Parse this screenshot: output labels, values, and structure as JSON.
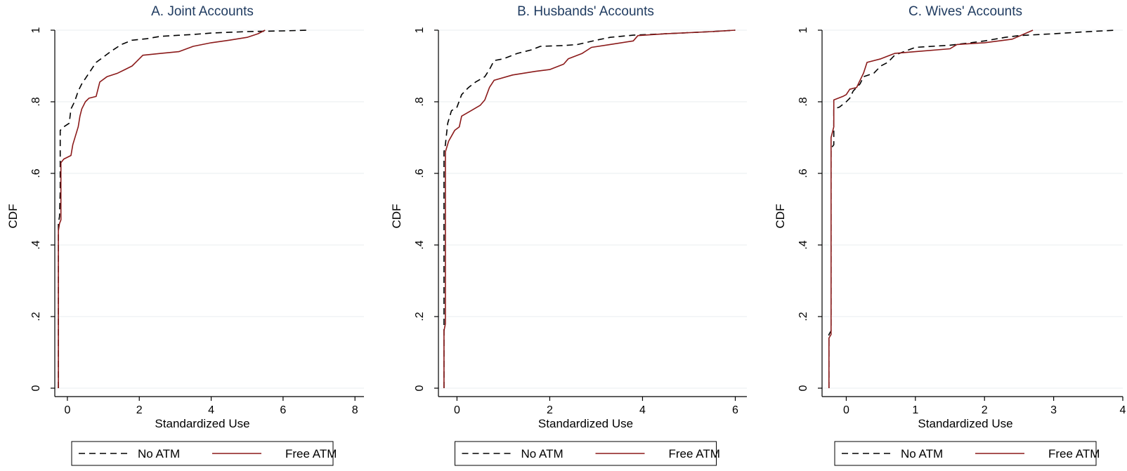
{
  "chart_data": [
    {
      "type": "line",
      "title": "A. Joint Accounts",
      "xlabel": "Standardized Use",
      "ylabel": "CDF",
      "xlim": [
        -0.35,
        8.25
      ],
      "ylim": [
        0,
        1
      ],
      "x_ticks": [
        0,
        2,
        4,
        6,
        8
      ],
      "y_ticks": [
        0,
        0.2,
        0.4,
        0.6,
        0.8,
        1
      ],
      "y_tick_labels": [
        "0",
        ".2",
        ".4",
        ".6",
        ".8",
        "1"
      ],
      "grid": true,
      "legend": "bottom",
      "series": [
        {
          "name": "No ATM",
          "color": "#000000",
          "style": "dashed",
          "points": [
            [
              -0.25,
              0
            ],
            [
              -0.25,
              0.46
            ],
            [
              -0.22,
              0.48
            ],
            [
              -0.2,
              0.55
            ],
            [
              -0.2,
              0.72
            ],
            [
              -0.1,
              0.73
            ],
            [
              0.05,
              0.74
            ],
            [
              0.1,
              0.78
            ],
            [
              0.2,
              0.8
            ],
            [
              0.3,
              0.83
            ],
            [
              0.4,
              0.85
            ],
            [
              0.6,
              0.88
            ],
            [
              0.8,
              0.91
            ],
            [
              1.0,
              0.925
            ],
            [
              1.2,
              0.94
            ],
            [
              1.5,
              0.96
            ],
            [
              1.8,
              0.972
            ],
            [
              2.2,
              0.976
            ],
            [
              2.6,
              0.983
            ],
            [
              3.5,
              0.988
            ],
            [
              4.0,
              0.992
            ],
            [
              5.0,
              0.996
            ],
            [
              6.0,
              0.998
            ],
            [
              6.7,
              1.0
            ]
          ]
        },
        {
          "name": "Free ATM",
          "color": "#8b1a1a",
          "style": "solid",
          "points": [
            [
              -0.25,
              0
            ],
            [
              -0.25,
              0.44
            ],
            [
              -0.22,
              0.46
            ],
            [
              -0.18,
              0.47
            ],
            [
              -0.18,
              0.63
            ],
            [
              -0.1,
              0.64
            ],
            [
              0.1,
              0.65
            ],
            [
              0.15,
              0.68
            ],
            [
              0.3,
              0.73
            ],
            [
              0.35,
              0.76
            ],
            [
              0.4,
              0.78
            ],
            [
              0.5,
              0.8
            ],
            [
              0.6,
              0.81
            ],
            [
              0.8,
              0.815
            ],
            [
              0.9,
              0.855
            ],
            [
              1.1,
              0.87
            ],
            [
              1.4,
              0.88
            ],
            [
              1.6,
              0.89
            ],
            [
              1.8,
              0.9
            ],
            [
              1.9,
              0.91
            ],
            [
              2.1,
              0.93
            ],
            [
              2.6,
              0.935
            ],
            [
              3.1,
              0.94
            ],
            [
              3.5,
              0.955
            ],
            [
              4.0,
              0.965
            ],
            [
              4.5,
              0.972
            ],
            [
              5.0,
              0.98
            ],
            [
              5.3,
              0.99
            ],
            [
              5.5,
              1.0
            ]
          ]
        }
      ]
    },
    {
      "type": "line",
      "title": "B. Husbands' Accounts",
      "xlabel": "Standardized Use",
      "ylabel": "CDF",
      "xlim": [
        -0.4,
        6.25
      ],
      "ylim": [
        0,
        1
      ],
      "x_ticks": [
        0,
        2,
        4,
        6
      ],
      "y_ticks": [
        0,
        0.2,
        0.4,
        0.6,
        0.8,
        1
      ],
      "y_tick_labels": [
        "0",
        ".2",
        ".4",
        ".6",
        ".8",
        "1"
      ],
      "grid": true,
      "legend": "bottom",
      "series": [
        {
          "name": "No ATM",
          "color": "#000000",
          "style": "dashed",
          "points": [
            [
              -0.28,
              0
            ],
            [
              -0.28,
              0.66
            ],
            [
              -0.25,
              0.68
            ],
            [
              -0.2,
              0.74
            ],
            [
              -0.12,
              0.775
            ],
            [
              0.0,
              0.785
            ],
            [
              0.1,
              0.82
            ],
            [
              0.25,
              0.84
            ],
            [
              0.4,
              0.855
            ],
            [
              0.6,
              0.87
            ],
            [
              0.7,
              0.89
            ],
            [
              0.8,
              0.915
            ],
            [
              1.0,
              0.92
            ],
            [
              1.3,
              0.935
            ],
            [
              1.6,
              0.945
            ],
            [
              1.8,
              0.955
            ],
            [
              2.3,
              0.957
            ],
            [
              2.6,
              0.96
            ],
            [
              3.0,
              0.972
            ],
            [
              3.3,
              0.98
            ],
            [
              3.8,
              0.986
            ],
            [
              4.5,
              0.99
            ],
            [
              5.5,
              0.996
            ],
            [
              6.0,
              1.0
            ]
          ]
        },
        {
          "name": "Free ATM",
          "color": "#8b1a1a",
          "style": "solid",
          "points": [
            [
              -0.28,
              0
            ],
            [
              -0.28,
              0.16
            ],
            [
              -0.25,
              0.18
            ],
            [
              -0.25,
              0.66
            ],
            [
              -0.18,
              0.69
            ],
            [
              -0.05,
              0.72
            ],
            [
              0.05,
              0.73
            ],
            [
              0.1,
              0.76
            ],
            [
              0.3,
              0.775
            ],
            [
              0.5,
              0.79
            ],
            [
              0.6,
              0.805
            ],
            [
              0.7,
              0.84
            ],
            [
              0.8,
              0.86
            ],
            [
              1.2,
              0.875
            ],
            [
              1.7,
              0.885
            ],
            [
              2.0,
              0.89
            ],
            [
              2.3,
              0.905
            ],
            [
              2.4,
              0.92
            ],
            [
              2.7,
              0.935
            ],
            [
              2.9,
              0.952
            ],
            [
              3.3,
              0.96
            ],
            [
              3.8,
              0.97
            ],
            [
              3.9,
              0.985
            ],
            [
              4.5,
              0.99
            ],
            [
              5.5,
              0.996
            ],
            [
              6.0,
              1.0
            ]
          ]
        }
      ]
    },
    {
      "type": "line",
      "title": "C. Wives' Accounts",
      "xlabel": "Standardized Use",
      "ylabel": "CDF",
      "xlim": [
        -0.35,
        4.0
      ],
      "ylim": [
        0,
        1
      ],
      "x_ticks": [
        0,
        1,
        2,
        3,
        4
      ],
      "y_ticks": [
        0,
        0.2,
        0.4,
        0.6,
        0.8,
        1
      ],
      "y_tick_labels": [
        "0",
        ".2",
        ".4",
        ".6",
        ".8",
        "1"
      ],
      "grid": true,
      "legend": "bottom",
      "series": [
        {
          "name": "No ATM",
          "color": "#000000",
          "style": "dashed",
          "points": [
            [
              -0.25,
              0
            ],
            [
              -0.25,
              0.15
            ],
            [
              -0.22,
              0.16
            ],
            [
              -0.22,
              0.67
            ],
            [
              -0.18,
              0.68
            ],
            [
              -0.18,
              0.78
            ],
            [
              -0.1,
              0.785
            ],
            [
              0.0,
              0.8
            ],
            [
              0.05,
              0.81
            ],
            [
              0.1,
              0.83
            ],
            [
              0.2,
              0.85
            ],
            [
              0.25,
              0.87
            ],
            [
              0.4,
              0.88
            ],
            [
              0.5,
              0.9
            ],
            [
              0.6,
              0.91
            ],
            [
              0.7,
              0.93
            ],
            [
              0.9,
              0.945
            ],
            [
              1.0,
              0.952
            ],
            [
              1.5,
              0.958
            ],
            [
              1.8,
              0.965
            ],
            [
              2.0,
              0.97
            ],
            [
              2.3,
              0.98
            ],
            [
              2.5,
              0.985
            ],
            [
              3.0,
              0.99
            ],
            [
              3.4,
              0.995
            ],
            [
              3.9,
              1.0
            ]
          ]
        },
        {
          "name": "Free ATM",
          "color": "#8b1a1a",
          "style": "solid",
          "points": [
            [
              -0.25,
              0
            ],
            [
              -0.25,
              0.14
            ],
            [
              -0.22,
              0.15
            ],
            [
              -0.22,
              0.7
            ],
            [
              -0.18,
              0.73
            ],
            [
              -0.18,
              0.805
            ],
            [
              -0.05,
              0.815
            ],
            [
              0.0,
              0.82
            ],
            [
              0.05,
              0.835
            ],
            [
              0.15,
              0.84
            ],
            [
              0.2,
              0.86
            ],
            [
              0.25,
              0.88
            ],
            [
              0.3,
              0.91
            ],
            [
              0.5,
              0.92
            ],
            [
              0.7,
              0.935
            ],
            [
              1.0,
              0.94
            ],
            [
              1.5,
              0.948
            ],
            [
              1.6,
              0.96
            ],
            [
              2.0,
              0.965
            ],
            [
              2.4,
              0.975
            ],
            [
              2.7,
              1.0
            ]
          ]
        }
      ]
    }
  ]
}
